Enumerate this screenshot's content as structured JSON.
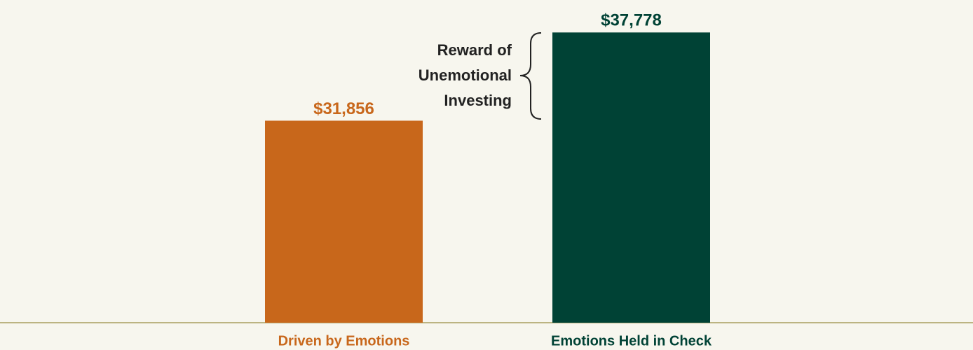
{
  "chart_data": {
    "type": "bar",
    "categories": [
      "Driven by Emotions",
      "Emotions Held in Check"
    ],
    "values": [
      31856,
      37778
    ],
    "value_labels": [
      "$31,856",
      "$37,778"
    ],
    "colors": [
      "#c8671b",
      "#004235"
    ],
    "ylim": [
      18300,
      38500
    ],
    "annotation": [
      "Reward of",
      "Unemotional",
      "Investing"
    ]
  }
}
